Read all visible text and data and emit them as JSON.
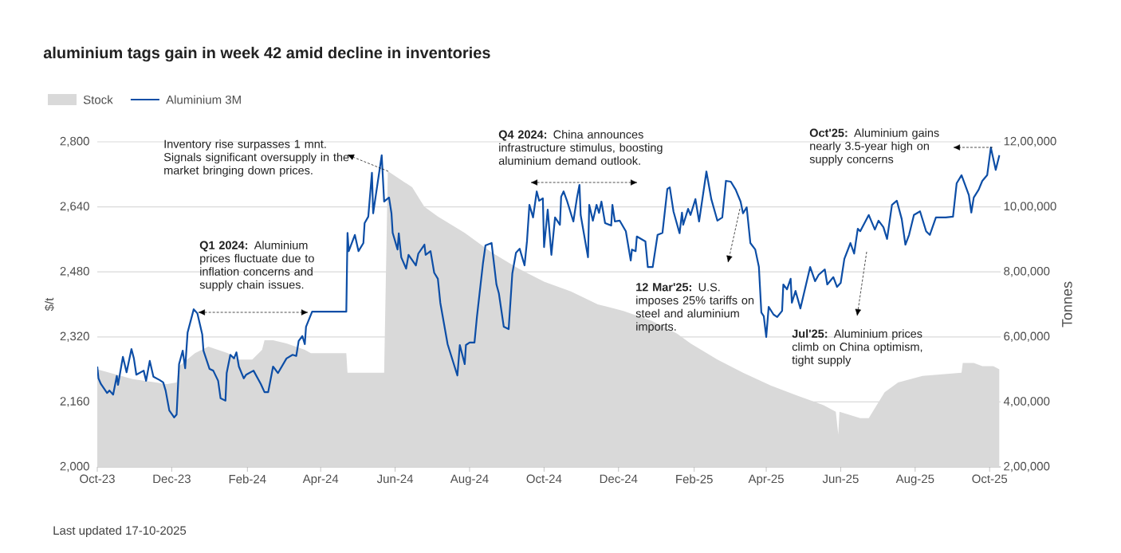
{
  "chart_data": {
    "type": "line",
    "title": "aluminium tags gain in week 42 amid decline in inventories",
    "ylabel": "$/t",
    "y2label": "Tonnes",
    "xlim": [
      "2023-10-01",
      "2025-10-10"
    ],
    "xticks": [
      {
        "value": "2023-10-01",
        "label": "Oct-23"
      },
      {
        "value": "2023-12-01",
        "label": "Dec-23"
      },
      {
        "value": "2024-02-01",
        "label": "Feb-24"
      },
      {
        "value": "2024-04-01",
        "label": "Apr-24"
      },
      {
        "value": "2024-06-01",
        "label": "Jun-24"
      },
      {
        "value": "2024-08-01",
        "label": "Aug-24"
      },
      {
        "value": "2024-10-01",
        "label": "Oct-24"
      },
      {
        "value": "2024-12-01",
        "label": "Dec-24"
      },
      {
        "value": "2025-02-01",
        "label": "Feb-25"
      },
      {
        "value": "2025-04-01",
        "label": "Apr-25"
      },
      {
        "value": "2025-06-01",
        "label": "Jun-25"
      },
      {
        "value": "2025-08-01",
        "label": "Aug-25"
      },
      {
        "value": "2025-10-01",
        "label": "Oct-25"
      }
    ],
    "ylim": [
      2000,
      2800
    ],
    "yticks": [
      {
        "value": 2000,
        "label": "2,000"
      },
      {
        "value": 2160,
        "label": "2,160"
      },
      {
        "value": 2320,
        "label": "2,320"
      },
      {
        "value": 2480,
        "label": "2,480"
      },
      {
        "value": 2640,
        "label": "2,640"
      },
      {
        "value": 2800,
        "label": "2,800"
      }
    ],
    "y2lim": [
      200000,
      1200000
    ],
    "y2ticks": [
      {
        "value": 200000,
        "label": "2,00,000"
      },
      {
        "value": 400000,
        "label": "4,00,000"
      },
      {
        "value": 600000,
        "label": "6,00,000"
      },
      {
        "value": 800000,
        "label": "8,00,000"
      },
      {
        "value": 1000000,
        "label": "10,00,000"
      },
      {
        "value": 1200000,
        "label": "12,00,000"
      }
    ],
    "grid": "y",
    "legend": "top left",
    "series": [
      {
        "name": "Stock",
        "type": "area",
        "axis": "y2",
        "color": "#d9d9d9",
        "x": [
          "2023-10-01",
          "2023-10-30",
          "2023-11-27",
          "2023-12-05",
          "2023-12-07",
          "2023-12-20",
          "2023-12-31",
          "2024-01-16",
          "2024-01-25",
          "2024-02-05",
          "2024-02-13",
          "2024-02-15",
          "2024-02-22",
          "2024-03-04",
          "2024-03-19",
          "2024-03-24",
          "2024-04-22",
          "2024-04-23",
          "2024-05-23",
          "2024-05-26",
          "2024-06-15",
          "2024-06-25",
          "2024-07-06",
          "2024-07-28",
          "2024-08-19",
          "2024-09-10",
          "2024-10-01",
          "2024-10-23",
          "2024-11-14",
          "2024-12-05",
          "2024-12-28",
          "2025-01-18",
          "2025-01-29",
          "2025-02-20",
          "2025-03-13",
          "2025-04-05",
          "2025-04-26",
          "2025-05-18",
          "2025-05-28",
          "2025-05-30",
          "2025-05-31",
          "2025-06-17",
          "2025-06-24",
          "2025-07-07",
          "2025-07-18",
          "2025-08-07",
          "2025-09-08",
          "2025-09-09",
          "2025-09-18",
          "2025-09-25",
          "2025-10-04",
          "2025-10-09"
        ],
        "values": [
          500000,
          470000,
          455000,
          460000,
          510000,
          550000,
          570000,
          550000,
          530000,
          530000,
          560000,
          590000,
          590000,
          580000,
          560000,
          550000,
          550000,
          490000,
          490000,
          1110000,
          1060000,
          1000000,
          970000,
          920000,
          860000,
          810000,
          770000,
          740000,
          700000,
          680000,
          650000,
          610000,
          580000,
          530000,
          490000,
          450000,
          420000,
          390000,
          370000,
          300000,
          370000,
          350000,
          350000,
          430000,
          460000,
          480000,
          490000,
          520000,
          520000,
          510000,
          510000,
          500000
        ]
      },
      {
        "name": "Aluminium 3M",
        "color": "#0d4ea6",
        "x": [
          "2023-10-01",
          "2023-10-02",
          "2023-10-04",
          "2023-10-09",
          "2023-10-11",
          "2023-10-14",
          "2023-10-17",
          "2023-10-18",
          "2023-10-22",
          "2023-10-25",
          "2023-10-29",
          "2023-10-31",
          "2023-11-02",
          "2023-11-08",
          "2023-11-10",
          "2023-11-13",
          "2023-11-16",
          "2023-11-21",
          "2023-11-24",
          "2023-11-26",
          "2023-11-29",
          "2023-12-03",
          "2023-12-05",
          "2023-12-07",
          "2023-12-10",
          "2023-12-12",
          "2023-12-14",
          "2023-12-19",
          "2023-12-22",
          "2023-12-26",
          "2023-12-27",
          "2024-01-01",
          "2024-01-04",
          "2024-01-08",
          "2024-01-10",
          "2024-01-14",
          "2024-01-15",
          "2024-01-18",
          "2024-01-21",
          "2024-01-23",
          "2024-01-25",
          "2024-01-29",
          "2024-01-31",
          "2024-02-06",
          "2024-02-12",
          "2024-02-15",
          "2024-02-18",
          "2024-02-22",
          "2024-02-26",
          "2024-03-04",
          "2024-03-09",
          "2024-03-12",
          "2024-03-14",
          "2024-03-17",
          "2024-03-19",
          "2024-03-20",
          "2024-03-25",
          "2024-04-22",
          "2024-04-23",
          "2024-04-24",
          "2024-04-29",
          "2024-05-02",
          "2024-05-06",
          "2024-05-07",
          "2024-05-10",
          "2024-05-13",
          "2024-05-14",
          "2024-05-21",
          "2024-05-23",
          "2024-05-27",
          "2024-05-29",
          "2024-05-30",
          "2024-06-03",
          "2024-06-04",
          "2024-06-06",
          "2024-06-10",
          "2024-06-12",
          "2024-06-18",
          "2024-06-20",
          "2024-06-25",
          "2024-06-26",
          "2024-06-30",
          "2024-07-03",
          "2024-07-06",
          "2024-07-08",
          "2024-07-14",
          "2024-07-17",
          "2024-07-22",
          "2024-07-24",
          "2024-07-28",
          "2024-07-29",
          "2024-08-01",
          "2024-08-05",
          "2024-08-07",
          "2024-08-12",
          "2024-08-14",
          "2024-08-19",
          "2024-08-23",
          "2024-08-25",
          "2024-08-29",
          "2024-09-02",
          "2024-09-05",
          "2024-09-08",
          "2024-09-11",
          "2024-09-15",
          "2024-09-17",
          "2024-09-19",
          "2024-09-22",
          "2024-09-25",
          "2024-09-27",
          "2024-09-30",
          "2024-10-01",
          "2024-10-04",
          "2024-10-07",
          "2024-10-10",
          "2024-10-14",
          "2024-10-15",
          "2024-10-17",
          "2024-10-20",
          "2024-10-25",
          "2024-10-28",
          "2024-10-30",
          "2024-10-31",
          "2024-11-06",
          "2024-11-07",
          "2024-11-10",
          "2024-11-13",
          "2024-11-15",
          "2024-11-17",
          "2024-11-20",
          "2024-11-25",
          "2024-11-26",
          "2024-11-28",
          "2024-12-02",
          "2024-12-07",
          "2024-12-11",
          "2024-12-12",
          "2024-12-15",
          "2024-12-16",
          "2024-12-23",
          "2024-12-25",
          "2024-12-29",
          "2025-01-02",
          "2025-01-06",
          "2025-01-10",
          "2025-01-12",
          "2025-01-15",
          "2025-01-20",
          "2025-01-22",
          "2025-01-23",
          "2025-01-27",
          "2025-01-29",
          "2025-02-02",
          "2025-02-05",
          "2025-02-11",
          "2025-02-15",
          "2025-02-20",
          "2025-02-24",
          "2025-02-27",
          "2025-03-03",
          "2025-03-07",
          "2025-03-11",
          "2025-03-13",
          "2025-03-16",
          "2025-03-19",
          "2025-03-23",
          "2025-03-26",
          "2025-03-28",
          "2025-03-30",
          "2025-04-01",
          "2025-04-03",
          "2025-04-07",
          "2025-04-10",
          "2025-04-14",
          "2025-04-15",
          "2025-04-18",
          "2025-04-21",
          "2025-04-22",
          "2025-04-25",
          "2025-04-29",
          "2025-05-07",
          "2025-05-11",
          "2025-05-14",
          "2025-05-19",
          "2025-05-21",
          "2025-05-26",
          "2025-05-29",
          "2025-06-01",
          "2025-06-04",
          "2025-06-09",
          "2025-06-12",
          "2025-06-15",
          "2025-06-17",
          "2025-06-24",
          "2025-06-29",
          "2025-07-02",
          "2025-07-06",
          "2025-07-09",
          "2025-07-13",
          "2025-07-17",
          "2025-07-21",
          "2025-07-24",
          "2025-07-27",
          "2025-07-31",
          "2025-08-05",
          "2025-08-10",
          "2025-08-13",
          "2025-08-18",
          "2025-08-26",
          "2025-09-01",
          "2025-09-04",
          "2025-09-08",
          "2025-09-14",
          "2025-09-16",
          "2025-09-18",
          "2025-09-22",
          "2025-09-25",
          "2025-09-29",
          "2025-10-02",
          "2025-10-06",
          "2025-10-09"
        ],
        "values": [
          2247,
          2218,
          2204,
          2182,
          2188,
          2178,
          2224,
          2202,
          2271,
          2233,
          2290,
          2267,
          2227,
          2237,
          2212,
          2261,
          2222,
          2214,
          2208,
          2188,
          2139,
          2122,
          2129,
          2253,
          2286,
          2243,
          2331,
          2388,
          2378,
          2326,
          2286,
          2241,
          2237,
          2212,
          2169,
          2163,
          2231,
          2276,
          2267,
          2282,
          2247,
          2218,
          2227,
          2237,
          2204,
          2184,
          2184,
          2247,
          2231,
          2267,
          2276,
          2273,
          2310,
          2322,
          2302,
          2345,
          2382,
          2382,
          2576,
          2531,
          2571,
          2531,
          2551,
          2600,
          2616,
          2724,
          2624,
          2767,
          2653,
          2663,
          2624,
          2576,
          2535,
          2575,
          2516,
          2488,
          2522,
          2496,
          2525,
          2547,
          2522,
          2531,
          2478,
          2463,
          2404,
          2302,
          2273,
          2225,
          2300,
          2253,
          2300,
          2306,
          2306,
          2369,
          2502,
          2545,
          2551,
          2449,
          2427,
          2345,
          2339,
          2476,
          2527,
          2537,
          2496,
          2555,
          2645,
          2614,
          2678,
          2655,
          2661,
          2541,
          2633,
          2522,
          2614,
          2596,
          2665,
          2678,
          2653,
          2604,
          2663,
          2694,
          2620,
          2516,
          2645,
          2606,
          2645,
          2625,
          2653,
          2600,
          2594,
          2645,
          2604,
          2606,
          2580,
          2508,
          2535,
          2531,
          2567,
          2555,
          2492,
          2492,
          2571,
          2576,
          2684,
          2688,
          2629,
          2575,
          2626,
          2596,
          2635,
          2620,
          2659,
          2604,
          2727,
          2659,
          2606,
          2614,
          2704,
          2702,
          2682,
          2653,
          2624,
          2639,
          2551,
          2535,
          2492,
          2380,
          2371,
          2320,
          2394,
          2375,
          2369,
          2384,
          2449,
          2437,
          2463,
          2404,
          2433,
          2390,
          2492,
          2457,
          2473,
          2486,
          2449,
          2467,
          2443,
          2453,
          2512,
          2551,
          2525,
          2586,
          2580,
          2620,
          2584,
          2606,
          2590,
          2561,
          2645,
          2655,
          2610,
          2547,
          2571,
          2620,
          2629,
          2580,
          2571,
          2614,
          2614,
          2616,
          2698,
          2718,
          2669,
          2626,
          2663,
          2682,
          2704,
          2718,
          2786,
          2731,
          2767
        ]
      }
    ],
    "annotations": [
      "Inventory rise surpasses 1 mnt. Signals significant oversupply in the market bringing down prices.",
      "**Q1 2024:** Aluminium prices fluctuate due to inflation concerns and supply chain issues.",
      "**Q4 2024:** China announces infrastructure stimulus, boosting aluminium demand outlook.",
      "**12 Mar'25:** U.S. imposes 25% tariffs on steel and aluminium imports.",
      "**Jul'25:** Aluminium prices climb on China optimism, tight supply",
      "**Oct'25:** Aluminium gains nearly 3.5-year high on supply concerns",
      "Last updated 17-10-2025"
    ]
  }
}
